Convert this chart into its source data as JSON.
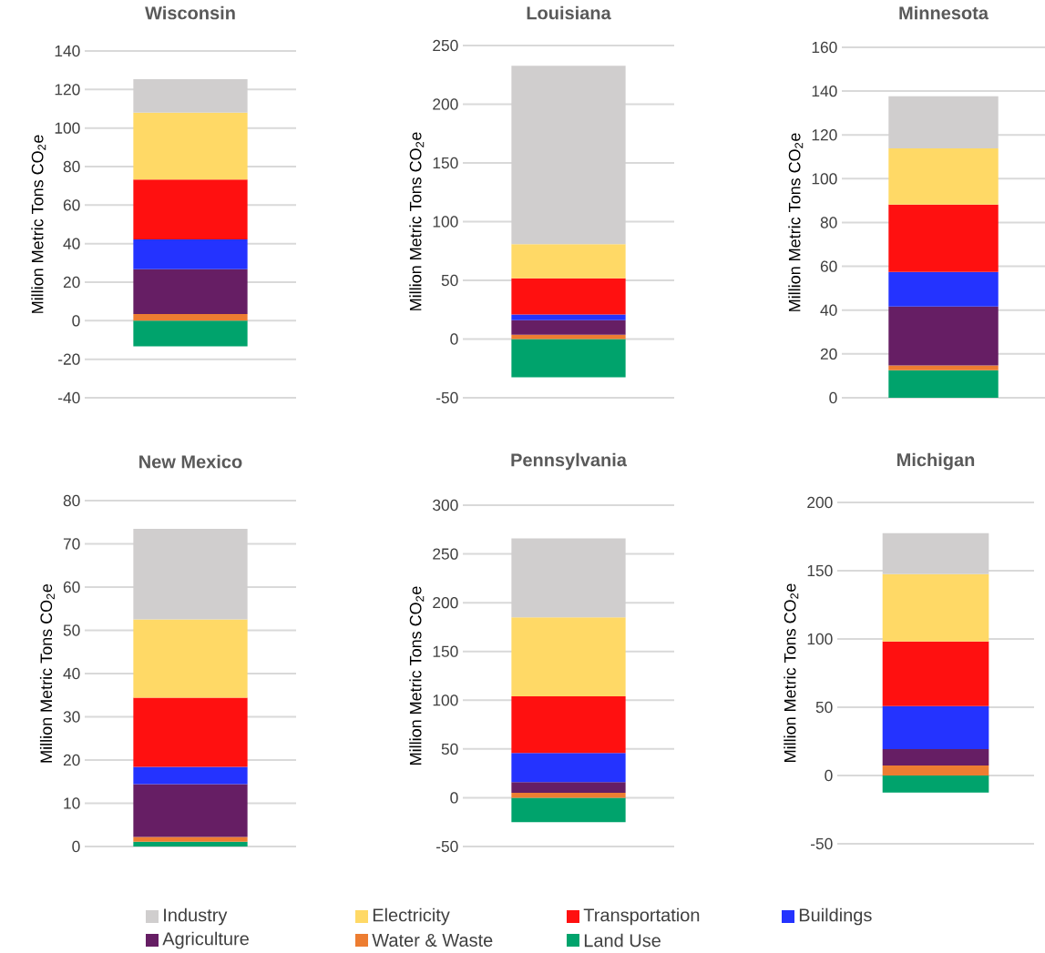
{
  "chart_data": [
    {
      "type": "bar",
      "stacked": true,
      "title": "Wisconsin",
      "ylabel": "Million Metric Tons CO$_{2}$e",
      "categories": [
        null
      ],
      "ylim": [
        -40,
        140
      ],
      "yticks": [
        -40,
        -20,
        0,
        20,
        40,
        60,
        80,
        100,
        120,
        140
      ],
      "grid": "y",
      "legend": "bottom",
      "series": [
        {
          "name": "Land Use",
          "color": "#00a36c",
          "values": [
            -13.3
          ]
        },
        {
          "name": "Water & Waste",
          "color": "#ed7d31",
          "values": [
            3.5
          ]
        },
        {
          "name": "Agriculture",
          "color": "#661e64",
          "values": [
            23.2
          ]
        },
        {
          "name": "Buildings",
          "color": "#2433ff",
          "values": [
            15.5
          ]
        },
        {
          "name": "Transportation",
          "color": "#ff1010",
          "values": [
            31.1
          ]
        },
        {
          "name": "Electricity",
          "color": "#ffd966",
          "values": [
            34.7
          ]
        },
        {
          "name": "Industry",
          "color": "#d0cece",
          "values": [
            17.4
          ]
        }
      ]
    },
    {
      "type": "bar",
      "stacked": true,
      "title": "Louisiana",
      "ylabel": "Million Metric Tons CO$_{2}$e",
      "categories": [
        null
      ],
      "ylim": [
        -50,
        250
      ],
      "yticks": [
        -50,
        0,
        50,
        100,
        150,
        200,
        250
      ],
      "grid": "y",
      "series": [
        {
          "color": "#00a36c",
          "values": [
            -32.5
          ]
        },
        {
          "color": "#ed7d31",
          "values": [
            3.6
          ]
        },
        {
          "color": "#661e64",
          "values": [
            12.4
          ]
        },
        {
          "color": "#2433ff",
          "values": [
            4.9
          ]
        },
        {
          "color": "#ff1010",
          "values": [
            30.8
          ]
        },
        {
          "color": "#ffd966",
          "values": [
            29.1
          ]
        },
        {
          "color": "#d0cece",
          "values": [
            151.9
          ]
        }
      ]
    },
    {
      "type": "bar",
      "stacked": true,
      "title": "Minnesota",
      "ylabel": "Million Metric Tons CO$_{2}$e",
      "categories": [
        null
      ],
      "ylim": [
        0,
        160
      ],
      "yticks": [
        0,
        20,
        40,
        60,
        80,
        100,
        120,
        140,
        160
      ],
      "grid": "y",
      "series": [
        {
          "color": "#00a36c",
          "values": [
            12.6
          ]
        },
        {
          "color": "#ed7d31",
          "values": [
            2.2
          ]
        },
        {
          "color": "#661e64",
          "values": [
            26.9
          ]
        },
        {
          "color": "#2433ff",
          "values": [
            15.8
          ]
        },
        {
          "color": "#ff1010",
          "values": [
            30.7
          ]
        },
        {
          "color": "#ffd966",
          "values": [
            25.7
          ]
        },
        {
          "color": "#d0cece",
          "values": [
            23.8
          ]
        }
      ]
    },
    {
      "type": "bar",
      "stacked": true,
      "title": "New Mexico",
      "ylabel": "Million Metric Tons CO$_{2}$e",
      "categories": [
        null
      ],
      "ylim": [
        0,
        80
      ],
      "yticks": [
        0,
        10,
        20,
        30,
        40,
        50,
        60,
        70,
        80
      ],
      "grid": "y",
      "series": [
        {
          "color": "#00a36c",
          "values": [
            1.1
          ]
        },
        {
          "color": "#ed7d31",
          "values": [
            1.1
          ]
        },
        {
          "color": "#661e64",
          "values": [
            12.2
          ]
        },
        {
          "color": "#2433ff",
          "values": [
            4.0
          ]
        },
        {
          "color": "#ff1010",
          "values": [
            16.0
          ]
        },
        {
          "color": "#ffd966",
          "values": [
            18.1
          ]
        },
        {
          "color": "#d0cece",
          "values": [
            21.0
          ]
        }
      ]
    },
    {
      "type": "bar",
      "stacked": true,
      "title": "Pennsylvania",
      "ylabel": "Million Metric Tons CO$_{2}$e",
      "categories": [
        null
      ],
      "ylim": [
        -50,
        300
      ],
      "yticks": [
        -50,
        0,
        50,
        100,
        150,
        200,
        250,
        300
      ],
      "grid": "y",
      "series": [
        {
          "color": "#00a36c",
          "values": [
            -25
          ]
        },
        {
          "color": "#ed7d31",
          "values": [
            5
          ]
        },
        {
          "color": "#661e64",
          "values": [
            11
          ]
        },
        {
          "color": "#2433ff",
          "values": [
            30
          ]
        },
        {
          "color": "#ff1010",
          "values": [
            58
          ]
        },
        {
          "color": "#ffd966",
          "values": [
            81
          ]
        },
        {
          "color": "#d0cece",
          "values": [
            81
          ]
        }
      ]
    },
    {
      "type": "bar",
      "stacked": true,
      "title": "Michigan",
      "ylabel": "Million Metric Tons CO$_{2}$e",
      "categories": [
        null
      ],
      "ylim": [
        -50,
        200
      ],
      "yticks": [
        -50,
        0,
        50,
        100,
        150,
        200
      ],
      "grid": "y",
      "series": [
        {
          "color": "#00a36c",
          "values": [
            -12.5
          ]
        },
        {
          "color": "#ed7d31",
          "values": [
            7.3
          ]
        },
        {
          "color": "#661e64",
          "values": [
            12.1
          ]
        },
        {
          "color": "#2433ff",
          "values": [
            31.5
          ]
        },
        {
          "color": "#ff1010",
          "values": [
            47.2
          ]
        },
        {
          "color": "#ffd966",
          "values": [
            49.4
          ]
        },
        {
          "color": "#d0cece",
          "values": [
            30.0
          ]
        }
      ]
    }
  ]
}
